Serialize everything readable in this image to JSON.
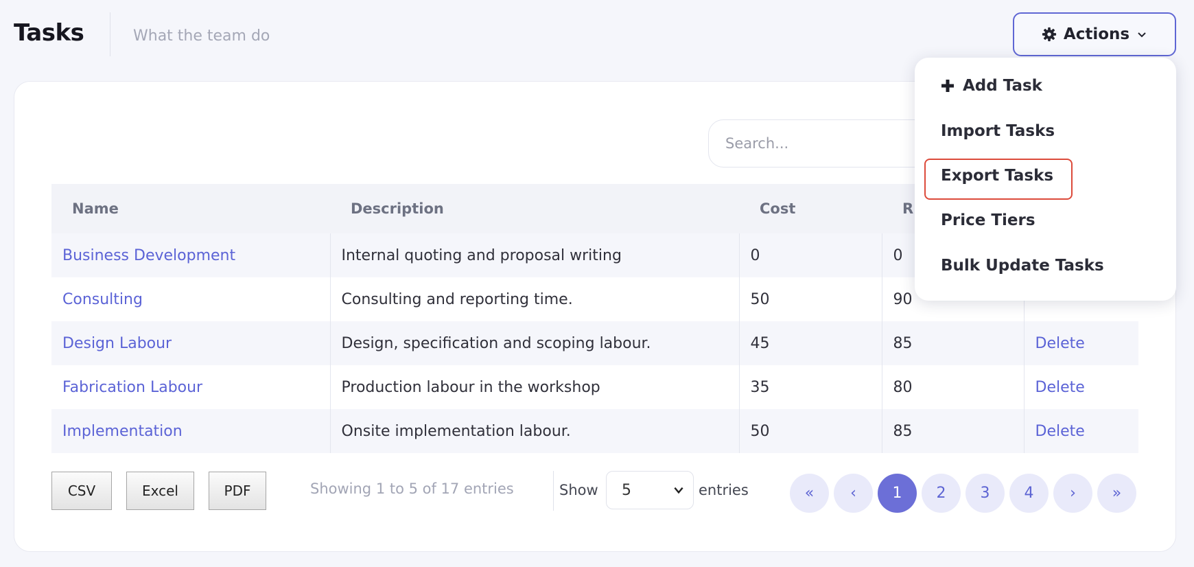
{
  "header": {
    "title": "Tasks",
    "subtitle": "What the team do",
    "actions_label": "Actions",
    "actions_icon": "gear-icon"
  },
  "actions_menu": {
    "items": [
      {
        "label": "Add Task",
        "icon": "plus-icon"
      },
      {
        "label": "Import Tasks"
      },
      {
        "label": "Export Tasks",
        "highlighted": true
      },
      {
        "label": "Price Tiers"
      },
      {
        "label": "Bulk Update Tasks"
      }
    ]
  },
  "search": {
    "placeholder": "Search..."
  },
  "table": {
    "columns": [
      "Name",
      "Description",
      "Cost",
      "R"
    ],
    "rows": [
      {
        "name": "Business Development",
        "description": "Internal quoting and proposal writing",
        "cost": "0",
        "rate": "0",
        "action": ""
      },
      {
        "name": "Consulting",
        "description": "Consulting and reporting time.",
        "cost": "50",
        "rate": "90",
        "action": ""
      },
      {
        "name": "Design Labour",
        "description": "Design, specification and scoping labour.",
        "cost": "45",
        "rate": "85",
        "action": "Delete"
      },
      {
        "name": "Fabrication Labour",
        "description": "Production labour in the workshop",
        "cost": "35",
        "rate": "80",
        "action": "Delete"
      },
      {
        "name": "Implementation",
        "description": "Onsite implementation labour.",
        "cost": "50",
        "rate": "85",
        "action": "Delete"
      }
    ]
  },
  "footer": {
    "export_buttons": [
      "CSV",
      "Excel",
      "PDF"
    ],
    "entries_info": "Showing 1 to 5 of 17 entries",
    "show_label": "Show",
    "page_length": "5",
    "entries_label": "entries",
    "pagination": {
      "first": "«",
      "prev": "‹",
      "pages": [
        "1",
        "2",
        "3",
        "4"
      ],
      "current": "1",
      "next": "›",
      "last": "»"
    }
  },
  "colors": {
    "accent": "#5b63d6",
    "active_page": "#6c6fd7",
    "highlight_border": "#dc4a3a"
  }
}
